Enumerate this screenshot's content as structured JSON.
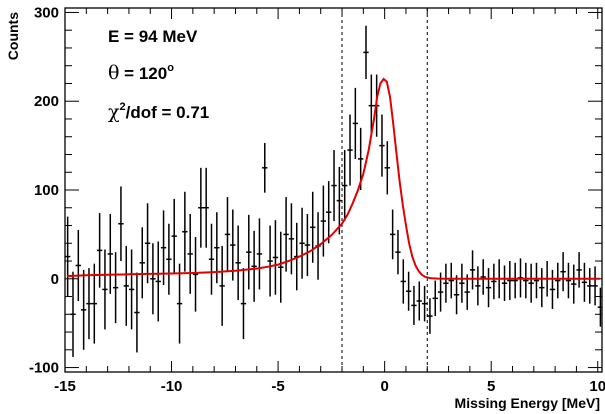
{
  "chart_data": {
    "type": "scatter",
    "title": "",
    "xlabel": "Missing Energy [MeV]",
    "ylabel": "Counts",
    "xlim": [
      -15,
      10.2
    ],
    "ylim": [
      -105,
      305
    ],
    "x_ticks": [
      -15,
      -10,
      -5,
      0,
      5,
      10
    ],
    "x_tick_labels": [
      "-15",
      "-10",
      "-5",
      "0",
      "5",
      "10"
    ],
    "y_ticks": [
      -100,
      0,
      100,
      200,
      300
    ],
    "y_tick_labels": [
      "-100",
      "0",
      "100",
      "200",
      "300"
    ],
    "grid": false,
    "legend": "none",
    "annotations": {
      "energy": "E = 94 MeV",
      "angle_symbol": "θ",
      "angle_value": " = 120",
      "angle_degree": "o",
      "chi_symbol": "χ",
      "chi_power": "2",
      "chi_rest": "/dof = 0.71"
    },
    "vertical_lines": [
      -2,
      2
    ],
    "series": [
      {
        "kind": "errorbar",
        "bin_width": 0.25,
        "x": [
          -14.875,
          -14.625,
          -14.375,
          -14.125,
          -13.875,
          -13.625,
          -13.375,
          -13.125,
          -12.875,
          -12.625,
          -12.375,
          -12.125,
          -11.875,
          -11.625,
          -11.375,
          -11.125,
          -10.875,
          -10.625,
          -10.375,
          -10.125,
          -9.875,
          -9.625,
          -9.375,
          -9.125,
          -8.875,
          -8.625,
          -8.375,
          -8.125,
          -7.875,
          -7.625,
          -7.375,
          -7.125,
          -6.875,
          -6.625,
          -6.375,
          -6.125,
          -5.875,
          -5.625,
          -5.375,
          -5.125,
          -4.875,
          -4.625,
          -4.375,
          -4.125,
          -3.875,
          -3.625,
          -3.375,
          -3.125,
          -2.875,
          -2.625,
          -2.375,
          -2.125,
          -1.875,
          -1.625,
          -1.375,
          -1.125,
          -0.875,
          -0.625,
          -0.375,
          -0.125,
          0.125,
          0.375,
          0.625,
          0.875,
          1.125,
          1.375,
          1.625,
          1.875,
          2.125,
          2.375,
          2.625,
          2.875,
          3.125,
          3.375,
          3.625,
          3.875,
          4.125,
          4.375,
          4.625,
          4.875,
          5.125,
          5.375,
          5.625,
          5.875,
          6.125,
          6.375,
          6.625,
          6.875,
          7.125,
          7.375,
          7.625,
          7.875,
          8.125,
          8.375,
          8.625,
          8.875,
          9.125,
          9.375,
          9.625,
          9.875,
          10.125
        ],
        "y": [
          25,
          -40,
          15,
          -35,
          -28,
          -28,
          32,
          -12,
          28,
          -10,
          62,
          -8,
          -12,
          -38,
          18,
          40,
          0,
          -3,
          35,
          22,
          48,
          -28,
          53,
          28,
          5,
          80,
          80,
          22,
          35,
          -8,
          50,
          38,
          18,
          -28,
          30,
          14,
          28,
          125,
          20,
          24,
          13,
          50,
          45,
          25,
          40,
          38,
          58,
          37,
          65,
          75,
          105,
          88,
          105,
          145,
          175,
          135,
          255,
          195,
          195,
          150,
          125,
          50,
          30,
          -3,
          -14,
          -30,
          -25,
          -28,
          -42,
          -22,
          -15,
          -5,
          -2,
          -18,
          -5,
          -15,
          10,
          -8,
          2,
          -10,
          -3,
          0,
          -5,
          -2,
          -2,
          1,
          -2,
          -5,
          -2,
          -10,
          0,
          -12,
          -2,
          8,
          -2,
          -6,
          10,
          -4,
          -8,
          -8,
          -32
        ],
        "err": [
          45,
          48,
          40,
          45,
          40,
          45,
          42,
          45,
          45,
          40,
          42,
          45,
          45,
          45,
          40,
          45,
          40,
          45,
          42,
          40,
          42,
          45,
          45,
          45,
          42,
          45,
          45,
          40,
          40,
          45,
          42,
          40,
          42,
          40,
          42,
          40,
          40,
          28,
          40,
          42,
          40,
          42,
          40,
          38,
          40,
          35,
          40,
          38,
          40,
          35,
          40,
          38,
          40,
          40,
          40,
          35,
          30,
          35,
          35,
          35,
          30,
          28,
          25,
          25,
          22,
          22,
          22,
          20,
          20,
          20,
          22,
          22,
          20,
          22,
          22,
          20,
          22,
          22,
          20,
          22,
          20,
          22,
          20,
          22,
          20,
          22,
          20,
          22,
          20,
          22,
          20,
          22,
          20,
          22,
          20,
          22,
          20,
          22,
          20,
          22,
          22
        ]
      },
      {
        "kind": "fit",
        "color": "#e00000",
        "x": [
          -14.9,
          -14,
          -13,
          -12,
          -11,
          -10,
          -9,
          -8,
          -7,
          -6,
          -5.5,
          -5,
          -4.5,
          -4,
          -3.5,
          -3,
          -2.5,
          -2,
          -1.75,
          -1.5,
          -1.25,
          -1,
          -0.75,
          -0.5,
          -0.35,
          -0.2,
          -0.05,
          0.1,
          0.25,
          0.4,
          0.55,
          0.7,
          0.85,
          1,
          1.15,
          1.3,
          1.45,
          1.6,
          1.75,
          1.9,
          2.05,
          2.2,
          2.5,
          3,
          4,
          5,
          6,
          7,
          8,
          9,
          10.1
        ],
        "y": [
          3,
          4,
          4.5,
          5,
          5.5,
          6,
          6.5,
          7.5,
          9,
          11.5,
          13.5,
          16,
          20,
          25,
          31,
          39,
          49,
          62,
          72,
          85,
          100,
          118,
          145,
          180,
          205,
          220,
          225,
          222,
          205,
          175,
          142,
          110,
          83,
          60,
          40,
          25,
          15,
          8.5,
          4.5,
          2.2,
          1.2,
          0.6,
          0.2,
          0,
          0,
          0,
          0,
          0,
          0,
          0,
          0
        ]
      }
    ]
  }
}
